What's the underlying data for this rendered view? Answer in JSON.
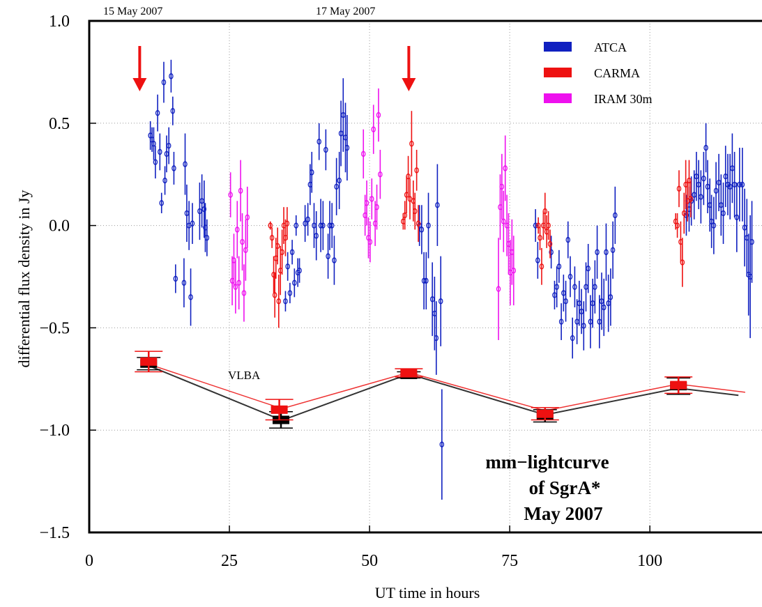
{
  "chart_data": {
    "type": "scatter",
    "title": [
      "mm−lightcurve",
      "of SgrA*",
      "May 2007"
    ],
    "xlabel": "UT time in hours",
    "ylabel": "differential flux density in Jy",
    "xlim": [
      0,
      120
    ],
    "ylim": [
      -1.5,
      1.0
    ],
    "xticks": [
      {
        "value": 0,
        "label": "0"
      },
      {
        "value": 25,
        "label": "25"
      },
      {
        "value": 50,
        "label": "50"
      },
      {
        "value": 75,
        "label": "75"
      },
      {
        "value": 100,
        "label": "100"
      }
    ],
    "yticks": [
      {
        "value": 1.0,
        "label": "1.0"
      },
      {
        "value": 0.5,
        "label": "0.5"
      },
      {
        "value": 0.0,
        "label": "0.0"
      },
      {
        "value": -0.5,
        "label": "−0.5"
      },
      {
        "value": -1.0,
        "label": "−1.0"
      },
      {
        "value": -1.5,
        "label": "−1.5"
      }
    ],
    "grid": true,
    "legend_position": "top-right",
    "date_labels": [
      {
        "x": 7,
        "label": "15 May 2007"
      },
      {
        "x": 55,
        "label": "17 May 2007"
      }
    ],
    "arrows": [
      {
        "x": 9,
        "color": "#ee1111"
      },
      {
        "x": 57,
        "color": "#ee1111"
      }
    ],
    "series": [
      {
        "name": "ATCA",
        "color": "#1020c0",
        "points": [
          [
            10.9,
            0.44,
            0.07
          ],
          [
            11.2,
            0.42,
            0.06
          ],
          [
            11.5,
            0.4,
            0.08
          ],
          [
            11.8,
            0.31,
            0.08
          ],
          [
            12.2,
            0.55,
            0.09
          ],
          [
            12.6,
            0.36,
            0.09
          ],
          [
            12.9,
            0.11,
            0.05
          ],
          [
            13.3,
            0.7,
            0.1
          ],
          [
            13.5,
            0.22,
            0.07
          ],
          [
            13.8,
            0.35,
            0.09
          ],
          [
            14.2,
            0.39,
            0.09
          ],
          [
            14.6,
            0.73,
            0.08
          ],
          [
            14.9,
            0.56,
            0.07
          ],
          [
            15.1,
            0.28,
            0.08
          ],
          [
            15.4,
            -0.26,
            0.07
          ],
          [
            16.9,
            -0.28,
            0.12
          ],
          [
            17.1,
            0.3,
            0.15
          ],
          [
            17.4,
            0.06,
            0.14
          ],
          [
            17.8,
            0.0,
            0.12
          ],
          [
            18.1,
            -0.35,
            0.14
          ],
          [
            18.4,
            0.01,
            0.1
          ],
          [
            19.7,
            0.07,
            0.14
          ],
          [
            20.1,
            0.12,
            0.13
          ],
          [
            20.5,
            0.08,
            0.14
          ],
          [
            20.7,
            -0.01,
            0.12
          ],
          [
            21.0,
            -0.06,
            0.09
          ],
          [
            35.0,
            -0.37,
            0.05
          ],
          [
            35.4,
            -0.2,
            0.07
          ],
          [
            35.8,
            -0.33,
            0.05
          ],
          [
            36.2,
            -0.13,
            0.06
          ],
          [
            36.6,
            -0.28,
            0.07
          ],
          [
            36.9,
            0.0,
            0.05
          ],
          [
            37.2,
            -0.23,
            0.07
          ],
          [
            37.5,
            -0.22,
            0.06
          ],
          [
            38.5,
            0.01,
            0.09
          ],
          [
            39.0,
            0.03,
            0.08
          ],
          [
            39.4,
            0.2,
            0.1
          ],
          [
            39.7,
            0.26,
            0.1
          ],
          [
            40.1,
            0.0,
            0.11
          ],
          [
            40.5,
            -0.05,
            0.12
          ],
          [
            41.0,
            0.41,
            0.09
          ],
          [
            41.3,
            0.0,
            0.13
          ],
          [
            41.7,
            0.0,
            0.12
          ],
          [
            42.2,
            0.37,
            0.1
          ],
          [
            42.6,
            -0.15,
            0.11
          ],
          [
            42.9,
            0.0,
            0.12
          ],
          [
            43.3,
            0.0,
            0.11
          ],
          [
            43.7,
            -0.17,
            0.12
          ],
          [
            44.1,
            0.19,
            0.14
          ],
          [
            44.6,
            0.22,
            0.14
          ],
          [
            44.9,
            0.45,
            0.16
          ],
          [
            45.3,
            0.54,
            0.18
          ],
          [
            45.7,
            0.43,
            0.17
          ],
          [
            46.0,
            0.38,
            0.16
          ],
          [
            58.9,
            0.0,
            0.1
          ],
          [
            59.3,
            -0.02,
            0.12
          ],
          [
            59.7,
            -0.27,
            0.14
          ],
          [
            60.1,
            -0.27,
            0.14
          ],
          [
            60.5,
            0.0,
            0.16
          ],
          [
            61.2,
            -0.36,
            0.18
          ],
          [
            61.6,
            -0.43,
            0.18
          ],
          [
            61.9,
            -0.55,
            0.18
          ],
          [
            62.1,
            0.1,
            0.2
          ],
          [
            62.7,
            -0.37,
            0.22
          ],
          [
            62.9,
            -1.07,
            0.27
          ],
          [
            79.6,
            0.0,
            0.08
          ],
          [
            80.0,
            -0.17,
            0.09
          ],
          [
            82.4,
            -0.13,
            0.08
          ],
          [
            83.0,
            -0.34,
            0.07
          ],
          [
            83.4,
            -0.3,
            0.1
          ],
          [
            83.8,
            -0.2,
            0.08
          ],
          [
            84.2,
            -0.47,
            0.09
          ],
          [
            84.6,
            -0.33,
            0.09
          ],
          [
            85.0,
            -0.37,
            0.1
          ],
          [
            85.4,
            -0.07,
            0.09
          ],
          [
            85.8,
            -0.25,
            0.1
          ],
          [
            86.2,
            -0.55,
            0.1
          ],
          [
            86.6,
            -0.3,
            0.1
          ],
          [
            87.0,
            -0.47,
            0.11
          ],
          [
            87.4,
            -0.38,
            0.11
          ],
          [
            87.8,
            -0.42,
            0.11
          ],
          [
            88.2,
            -0.49,
            0.12
          ],
          [
            88.6,
            -0.3,
            0.12
          ],
          [
            89.0,
            -0.21,
            0.12
          ],
          [
            89.4,
            -0.47,
            0.13
          ],
          [
            89.8,
            -0.38,
            0.12
          ],
          [
            90.2,
            -0.3,
            0.13
          ],
          [
            90.6,
            -0.13,
            0.13
          ],
          [
            91.0,
            -0.47,
            0.13
          ],
          [
            91.4,
            -0.37,
            0.14
          ],
          [
            91.8,
            -0.4,
            0.14
          ],
          [
            92.2,
            -0.13,
            0.14
          ],
          [
            92.6,
            -0.38,
            0.14
          ],
          [
            93.0,
            -0.35,
            0.14
          ],
          [
            93.4,
            -0.12,
            0.14
          ],
          [
            93.8,
            0.05,
            0.14
          ],
          [
            106.5,
            0.05,
            0.1
          ],
          [
            107.0,
            0.08,
            0.11
          ],
          [
            107.4,
            0.12,
            0.12
          ],
          [
            107.9,
            0.15,
            0.12
          ],
          [
            108.3,
            0.24,
            0.12
          ],
          [
            108.7,
            0.2,
            0.12
          ],
          [
            109.1,
            0.14,
            0.13
          ],
          [
            109.6,
            0.23,
            0.13
          ],
          [
            110.0,
            0.38,
            0.12
          ],
          [
            110.3,
            0.19,
            0.13
          ],
          [
            110.7,
            0.1,
            0.13
          ],
          [
            111.0,
            0.02,
            0.13
          ],
          [
            111.4,
            0.0,
            0.14
          ],
          [
            111.8,
            0.17,
            0.14
          ],
          [
            112.3,
            0.21,
            0.14
          ],
          [
            112.7,
            0.1,
            0.15
          ],
          [
            113.1,
            0.06,
            0.15
          ],
          [
            113.5,
            0.24,
            0.15
          ],
          [
            113.9,
            0.2,
            0.15
          ],
          [
            114.3,
            0.19,
            0.16
          ],
          [
            114.7,
            0.28,
            0.17
          ],
          [
            115.1,
            0.2,
            0.16
          ],
          [
            115.5,
            0.04,
            0.17
          ],
          [
            116.0,
            0.2,
            0.18
          ],
          [
            116.5,
            0.2,
            0.18
          ],
          [
            116.9,
            -0.01,
            0.19
          ],
          [
            117.3,
            -0.06,
            0.19
          ],
          [
            117.6,
            -0.24,
            0.2
          ],
          [
            117.9,
            -0.25,
            0.3
          ],
          [
            118.2,
            -0.08,
            0.2
          ]
        ]
      },
      {
        "name": "CARMA",
        "color": "#ee1111",
        "points": [
          [
            32.3,
            0.0,
            0.02
          ],
          [
            32.6,
            -0.06,
            0.05
          ],
          [
            32.9,
            -0.24,
            0.09
          ],
          [
            33.1,
            -0.34,
            0.11
          ],
          [
            33.3,
            -0.16,
            0.1
          ],
          [
            33.6,
            -0.1,
            0.09
          ],
          [
            33.8,
            -0.37,
            0.13
          ],
          [
            34.1,
            -0.22,
            0.12
          ],
          [
            34.4,
            -0.13,
            0.11
          ],
          [
            34.7,
            0.0,
            0.09
          ],
          [
            35.0,
            -0.06,
            0.09
          ],
          [
            35.3,
            0.01,
            0.08
          ],
          [
            56.0,
            0.02,
            0.04
          ],
          [
            56.3,
            0.05,
            0.07
          ],
          [
            56.6,
            0.15,
            0.09
          ],
          [
            56.9,
            0.24,
            0.1
          ],
          [
            57.2,
            0.13,
            0.1
          ],
          [
            57.5,
            0.4,
            0.16
          ],
          [
            57.8,
            0.12,
            0.1
          ],
          [
            58.1,
            0.07,
            0.09
          ],
          [
            58.4,
            0.27,
            0.1
          ],
          [
            58.7,
            0.01,
            0.09
          ],
          [
            80.1,
            0.0,
            0.04
          ],
          [
            80.4,
            -0.06,
            0.06
          ],
          [
            80.7,
            -0.2,
            0.09
          ],
          [
            81.0,
            0.0,
            0.07
          ],
          [
            81.3,
            0.07,
            0.09
          ],
          [
            81.6,
            -0.03,
            0.08
          ],
          [
            81.9,
            0.0,
            0.07
          ],
          [
            82.2,
            -0.09,
            0.07
          ],
          [
            104.6,
            0.02,
            0.04
          ],
          [
            104.9,
            0.0,
            0.06
          ],
          [
            105.2,
            0.18,
            0.09
          ],
          [
            105.5,
            -0.08,
            0.1
          ],
          [
            105.8,
            -0.18,
            0.12
          ],
          [
            106.1,
            0.06,
            0.1
          ],
          [
            106.4,
            0.2,
            0.12
          ],
          [
            106.7,
            0.12,
            0.1
          ],
          [
            107.0,
            0.22,
            0.1
          ],
          [
            107.3,
            0.13,
            0.09
          ]
        ]
      },
      {
        "name": "IRAM 30m",
        "color": "#ee11ee",
        "points": [
          [
            25.2,
            0.15,
            0.11
          ],
          [
            25.5,
            -0.27,
            0.12
          ],
          [
            25.8,
            -0.17,
            0.13
          ],
          [
            26.1,
            -0.3,
            0.13
          ],
          [
            26.4,
            -0.02,
            0.14
          ],
          [
            26.7,
            -0.28,
            0.13
          ],
          [
            27.0,
            0.17,
            0.15
          ],
          [
            27.3,
            -0.08,
            0.14
          ],
          [
            27.6,
            -0.33,
            0.14
          ],
          [
            27.9,
            -0.12,
            0.15
          ],
          [
            28.2,
            0.04,
            0.15
          ],
          [
            48.9,
            0.35,
            0.12
          ],
          [
            49.2,
            0.05,
            0.1
          ],
          [
            49.5,
            0.11,
            0.11
          ],
          [
            49.8,
            -0.06,
            0.1
          ],
          [
            50.1,
            -0.08,
            0.1
          ],
          [
            50.4,
            0.13,
            0.1
          ],
          [
            50.7,
            0.47,
            0.12
          ],
          [
            51.0,
            0.01,
            0.11
          ],
          [
            51.3,
            0.09,
            0.11
          ],
          [
            51.6,
            0.54,
            0.13
          ],
          [
            51.9,
            0.25,
            0.12
          ],
          [
            73.0,
            -0.31,
            0.25
          ],
          [
            73.3,
            0.09,
            0.16
          ],
          [
            73.6,
            0.19,
            0.16
          ],
          [
            73.9,
            0.02,
            0.15
          ],
          [
            74.2,
            0.28,
            0.16
          ],
          [
            74.5,
            0.0,
            0.15
          ],
          [
            74.8,
            -0.09,
            0.15
          ],
          [
            75.1,
            -0.23,
            0.16
          ],
          [
            75.4,
            -0.13,
            0.16
          ],
          [
            75.7,
            -0.22,
            0.17
          ]
        ]
      }
    ],
    "vlba": {
      "label": "VLBA",
      "red": {
        "color": "#ee1111",
        "points": [
          [
            10.6,
            -0.665,
            0.05
          ],
          [
            33.9,
            -0.9,
            0.05
          ],
          [
            57.0,
            -0.72,
            0.02
          ],
          [
            81.3,
            -0.92,
            0.03
          ],
          [
            105.1,
            -0.78,
            0.04
          ]
        ],
        "line": [
          [
            10.0,
            -0.672
          ],
          [
            34.4,
            -0.895
          ],
          [
            57.0,
            -0.718
          ],
          [
            81.3,
            -0.905
          ],
          [
            105.0,
            -0.775
          ],
          [
            117.0,
            -0.815
          ]
        ]
      },
      "black": {
        "color": "#000000",
        "points": [
          [
            10.6,
            -0.675,
            0.03
          ],
          [
            34.2,
            -0.95,
            0.04
          ],
          [
            57.0,
            -0.73,
            0.015
          ],
          [
            81.3,
            -0.93,
            0.03
          ],
          [
            105.1,
            -0.785,
            0.04
          ]
        ],
        "line": [
          [
            10.0,
            -0.678
          ],
          [
            34.4,
            -0.952
          ],
          [
            57.0,
            -0.725
          ],
          [
            81.3,
            -0.925
          ],
          [
            105.0,
            -0.795
          ],
          [
            115.8,
            -0.83
          ]
        ]
      }
    }
  }
}
